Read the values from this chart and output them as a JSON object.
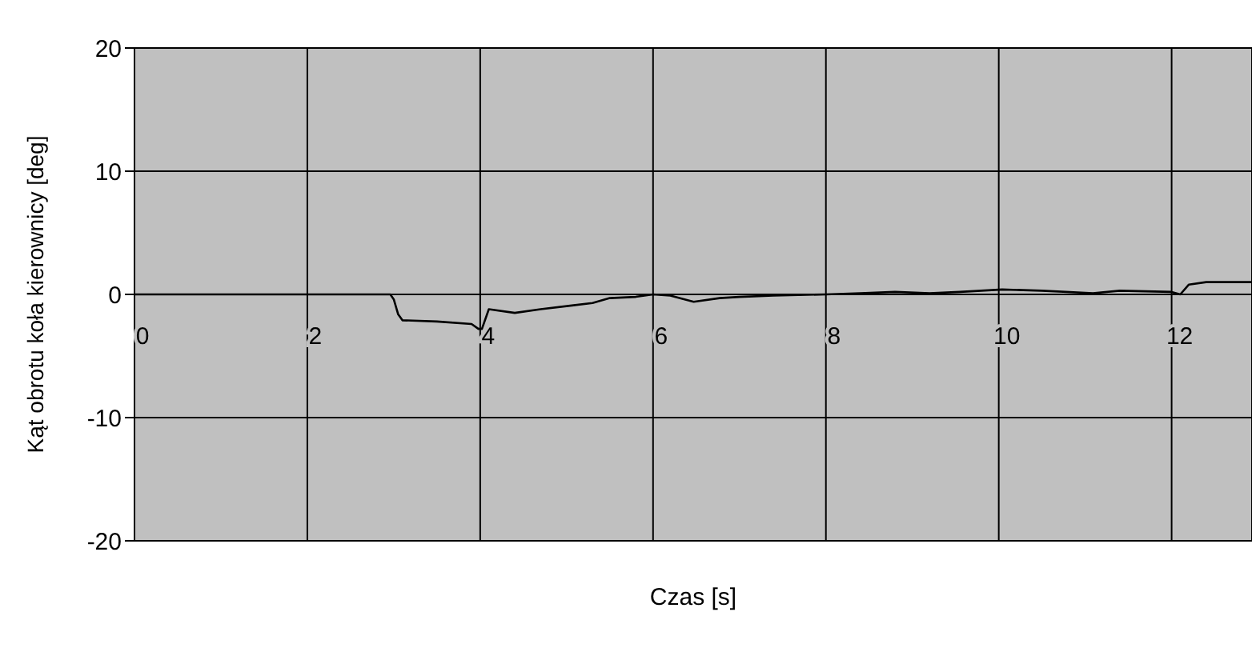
{
  "chart_data": {
    "type": "line",
    "xlabel": "Czas [s]",
    "ylabel": "Kąt obrotu koła kierownicy [deg]",
    "x": [
      0,
      2.96,
      3.0,
      3.05,
      3.1,
      3.5,
      3.9,
      3.98,
      4.02,
      4.1,
      4.4,
      4.7,
      5.06,
      5.3,
      5.5,
      5.8,
      6.0,
      6.2,
      6.47,
      6.77,
      7.0,
      7.39,
      8.0,
      8.4,
      8.8,
      9.2,
      9.55,
      10.04,
      10.5,
      11.09,
      11.4,
      12.0,
      12.1,
      12.2,
      12.4,
      12.93
    ],
    "series": [
      {
        "color": "#000000",
        "values": [
          0,
          0,
          -0.4,
          -1.6,
          -2.1,
          -2.2,
          -2.4,
          -2.8,
          -2.8,
          -1.2,
          -1.5,
          -1.2,
          -0.9,
          -0.7,
          -0.3,
          -0.2,
          0,
          -0.1,
          -0.6,
          -0.3,
          -0.2,
          -0.1,
          0,
          0.1,
          0.2,
          0.1,
          0.2,
          0.4,
          0.3,
          0.1,
          0.3,
          0.2,
          0,
          0.8,
          1,
          1
        ]
      }
    ],
    "xlim": [
      0,
      12.93
    ],
    "xticks": [
      0,
      2,
      4,
      6,
      8,
      10,
      12
    ],
    "ylim": [
      -20,
      20
    ],
    "yticks": [
      -20,
      -10,
      0,
      10,
      20
    ],
    "grid": true,
    "marker": "none",
    "line_style": "solid"
  }
}
